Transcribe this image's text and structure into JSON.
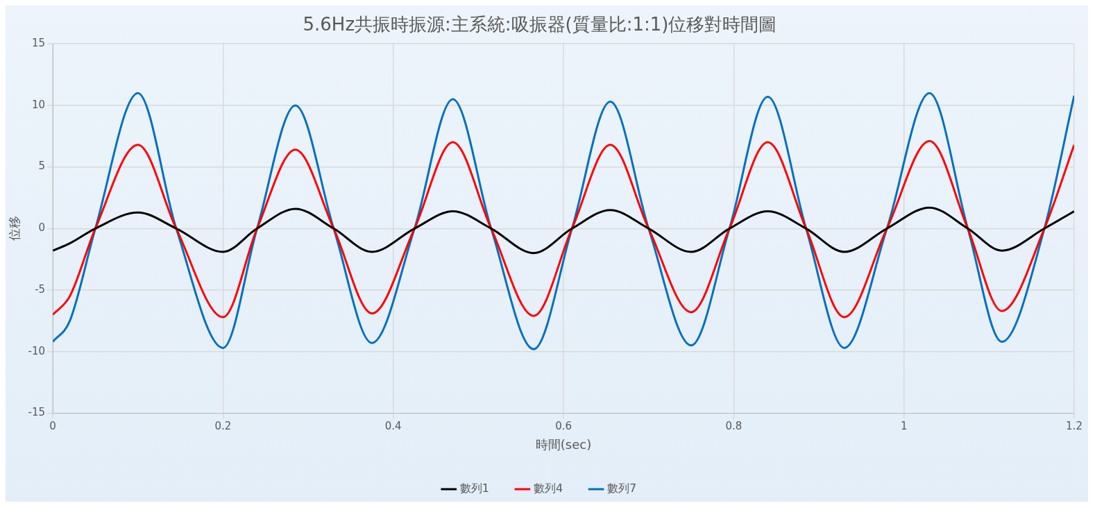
{
  "chart_data": {
    "type": "line",
    "title": "5.6Hz共振時振源:主系統:吸振器(質量比:1:1)位移對時間圖",
    "xlabel": "時間(sec)",
    "ylabel": "位移",
    "x": [
      0,
      0.02,
      0.05,
      0.1,
      0.145,
      0.2,
      0.24,
      0.285,
      0.33,
      0.375,
      0.425,
      0.47,
      0.515,
      0.565,
      0.61,
      0.655,
      0.7,
      0.75,
      0.795,
      0.84,
      0.885,
      0.93,
      0.98,
      1.03,
      1.075,
      1.115,
      1.165,
      1.2
    ],
    "series": [
      {
        "name": "數列1",
        "color": "#000000",
        "values": [
          -1.8,
          -1.2,
          0,
          1.3,
          0,
          -1.9,
          0,
          1.6,
          0,
          -1.9,
          0,
          1.4,
          0,
          -2,
          0,
          1.5,
          0,
          -1.9,
          0,
          1.4,
          0,
          -1.9,
          0,
          1.7,
          0,
          -1.8,
          0,
          1.4
        ]
      },
      {
        "name": "數列4",
        "color": "#ff0000",
        "values": [
          -7,
          -5.5,
          0,
          6.8,
          0,
          -7.2,
          0,
          6.4,
          0,
          -6.9,
          0,
          7,
          0,
          -7.1,
          0,
          6.8,
          0,
          -6.8,
          0,
          7,
          0,
          -7.2,
          0,
          7.1,
          0,
          -6.7,
          0,
          6.8
        ]
      },
      {
        "name": "數列7",
        "color": "#0070c0",
        "values": [
          -9.2,
          -7.5,
          0,
          11,
          0,
          -9.7,
          0,
          10,
          0,
          -9.3,
          0,
          10.5,
          0,
          -9.8,
          0,
          10.3,
          0,
          -9.5,
          0,
          10.7,
          0,
          -9.7,
          0,
          11,
          0,
          -9.2,
          0,
          10.8
        ]
      }
    ],
    "xlim": [
      0,
      1.2
    ],
    "xticks": [
      0,
      0.2,
      0.4,
      0.6,
      0.8,
      1,
      1.2
    ],
    "ylim": [
      -15,
      15
    ],
    "yticks": [
      -15,
      -10,
      -5,
      0,
      5,
      10,
      15
    ],
    "grid": true,
    "legend": "bottom",
    "marker": "none",
    "line_style": "solid"
  }
}
